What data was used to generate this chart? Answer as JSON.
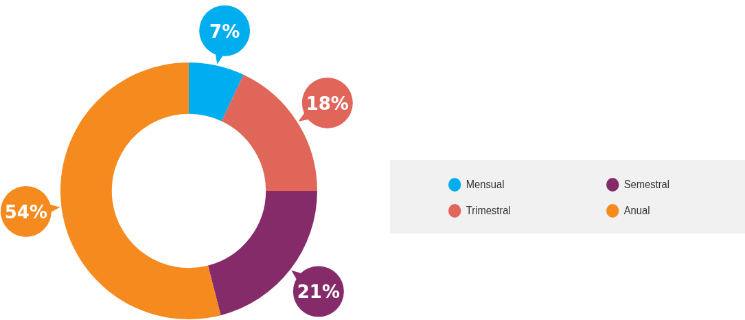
{
  "chart_data": {
    "type": "donut",
    "categories": [
      "Mensual",
      "Trimestral",
      "Semestral",
      "Anual"
    ],
    "values": [
      7,
      18,
      21,
      54
    ],
    "colors": [
      "#00aeef",
      "#e0665a",
      "#862b6a",
      "#f58a1f"
    ],
    "value_labels": [
      "7%",
      "18%",
      "21%",
      "54%"
    ],
    "legend": "right"
  }
}
